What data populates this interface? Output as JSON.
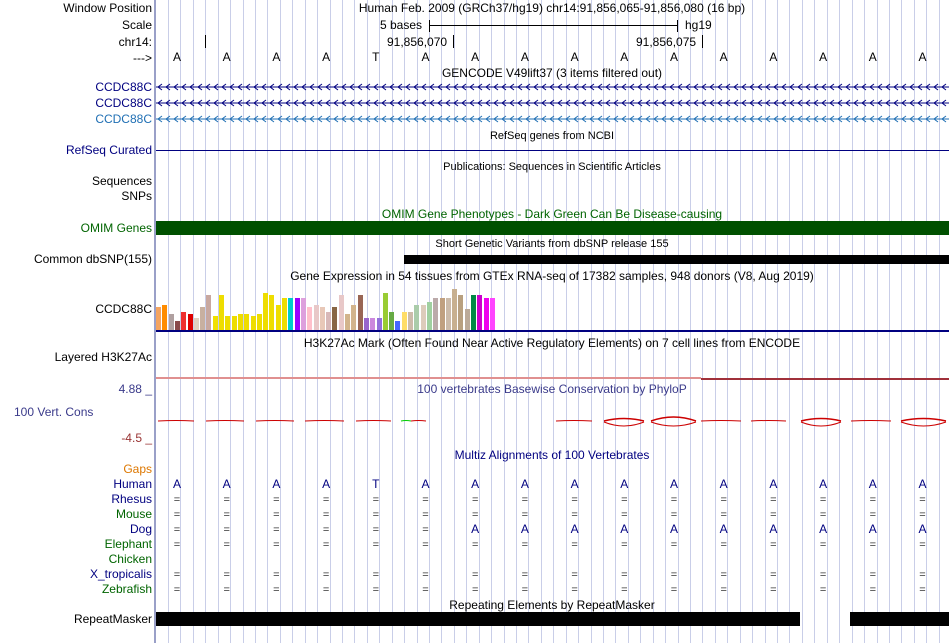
{
  "header": {
    "window_position_label": "Window Position",
    "scale_label": "Scale",
    "chrom_label": "chr14:",
    "arrow_label": "--->",
    "assembly_text": "Human Feb. 2009 (GRCh37/hg19)   chr14:91,856,065-91,856,080 (16 bp)",
    "scale_text": "5 bases",
    "scale_db": "hg19",
    "pos1": "91,856,070",
    "pos2": "91,856,075"
  },
  "sequence": [
    "A",
    "A",
    "A",
    "A",
    "T",
    "A",
    "A",
    "A",
    "A",
    "A",
    "A",
    "A",
    "A",
    "A",
    "A",
    "A"
  ],
  "tracks": {
    "gencode": {
      "title": "GENCODE V49lift37 (3 items filtered out)",
      "genes": [
        "CCDC88C",
        "CCDC88C",
        "CCDC88C"
      ]
    },
    "refseq": {
      "title": "RefSeq genes from NCBI",
      "label": "RefSeq Curated"
    },
    "publications": {
      "title": "Publications: Sequences in Scientific Articles",
      "label1": "Sequences",
      "label2": "SNPs"
    },
    "omim": {
      "title": "OMIM Gene Phenotypes - Dark Green Can Be Disease-causing",
      "label": "OMIM Genes",
      "color": "#005000"
    },
    "dbsnp": {
      "title": "Short Genetic Variants from dbSNP release 155",
      "label": "Common dbSNP(155)"
    },
    "gtex": {
      "title": "Gene Expression in 54 tissues from GTEx RNA-seq of 17382 samples, 948 donors (V8, Aug 2019)",
      "label": "CCDC88C",
      "levels": [
        0.5,
        0.55,
        0.35,
        0.2,
        0.4,
        0.35,
        0.25,
        0.5,
        0.75,
        0.3,
        0.75,
        0.3,
        0.3,
        0.35,
        0.35,
        0.3,
        0.35,
        0.8,
        0.75,
        0.55,
        0.7,
        0.7,
        0.7,
        0.7,
        0.5,
        0.55,
        0.5,
        0.4,
        0.5,
        0.75,
        0.35,
        0.55,
        0.75,
        0.25,
        0.25,
        0.25,
        0.8,
        0.4,
        0.2,
        0.4,
        0.4,
        0.55,
        0.55,
        0.6,
        0.7,
        0.7,
        0.7,
        0.9,
        0.75,
        0.45,
        0.75,
        0.75,
        0.7,
        0.7
      ],
      "colors": [
        "#f4a460",
        "#ff8c00",
        "#b0a0a0",
        "#8a4a4a",
        "#ee3030",
        "#dd0000",
        "#e0d0c0",
        "#c8b0a0",
        "#c8a8a0",
        "#f0e000",
        "#eedd00",
        "#eedd00",
        "#eedd00",
        "#eedd00",
        "#eedd00",
        "#eedd00",
        "#eedd00",
        "#eedd00",
        "#eedd00",
        "#eedd00",
        "#eedd00",
        "#00cccc",
        "#9900ff",
        "#dda0dd",
        "#ffc0cb",
        "#e8c8c8",
        "#e8c8b8",
        "#d8b8b8",
        "#886644",
        "#e8c8c8",
        "#d2b48c",
        "#d2b48c",
        "#996655",
        "#9966cc",
        "#cc88dd",
        "#9370db",
        "#99cc33",
        "#66aa44",
        "#4466ff",
        "#ffdd66",
        "#ccbbaa",
        "#aaccaa",
        "#ddccbb",
        "#a0d0a0",
        "#bbaaaa",
        "#c0a080",
        "#ccbbaa",
        "#c8b090",
        "#b8a080",
        "#bbaa99",
        "#008844",
        "#cc00cc",
        "#ee00ee",
        "#ff44ff"
      ]
    },
    "h3k27ac": {
      "title": "H3K27Ac Mark (Often Found Near Active Regulatory Elements) on 7 cell lines from ENCODE",
      "label": "Layered H3K27Ac"
    },
    "phylop": {
      "title": "100 vertebrates Basewise Conservation by PhyloP",
      "label": "100 Vert. Cons",
      "max_label": "4.88 _",
      "min_label": "-4.5 _"
    },
    "multiz": {
      "title": "Multiz Alignments of 100 Vertebrates",
      "species": [
        {
          "name": "Gaps",
          "color": "#dd7700"
        },
        {
          "name": "Human",
          "color": "#000080"
        },
        {
          "name": "Rhesus",
          "color": "#000080"
        },
        {
          "name": "Mouse",
          "color": "#006400"
        },
        {
          "name": "Dog",
          "color": "#000080"
        },
        {
          "name": "Elephant",
          "color": "#006400"
        },
        {
          "name": "Chicken",
          "color": "#006400"
        },
        {
          "name": "X_tropicalis",
          "color": "#000080"
        },
        {
          "name": "Zebrafish",
          "color": "#006400"
        }
      ],
      "dog_bases": [
        "=",
        "=",
        "=",
        "=",
        "=",
        "=",
        "A",
        "A",
        "A",
        "A",
        "A",
        "A",
        "A",
        "A",
        "A",
        "A"
      ]
    },
    "repeatmasker": {
      "title": "Repeating Elements by RepeatMasker",
      "label": "RepeatMasker"
    }
  },
  "colors": {
    "navy": "#000080",
    "omim": "#005000",
    "phylop_red": "#cc0000",
    "h3k27ac_line": "#a0303a"
  }
}
